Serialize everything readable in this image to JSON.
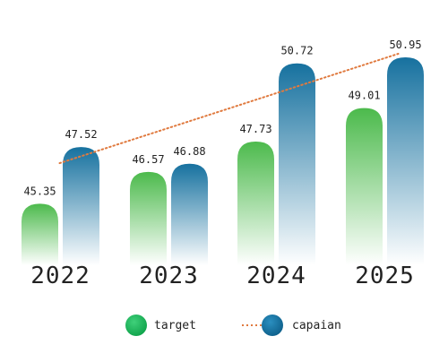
{
  "chart_data": {
    "type": "bar",
    "categories": [
      "2022",
      "2023",
      "2024",
      "2025"
    ],
    "series": [
      {
        "name": "target",
        "values": [
          45.35,
          46.57,
          47.73,
          49.01
        ]
      },
      {
        "name": "capaian",
        "values": [
          47.52,
          46.88,
          50.72,
          50.95
        ]
      }
    ],
    "trendline": {
      "series": "capaian",
      "from": 47.52,
      "to": 50.95,
      "style": "dotted",
      "color": "#e07a3f"
    },
    "legend": {
      "position": "bottom",
      "items": [
        "target",
        "capaian"
      ]
    },
    "grid": false,
    "colors": {
      "target": "#4cba4c",
      "capaian": "#1a6f9e"
    }
  }
}
